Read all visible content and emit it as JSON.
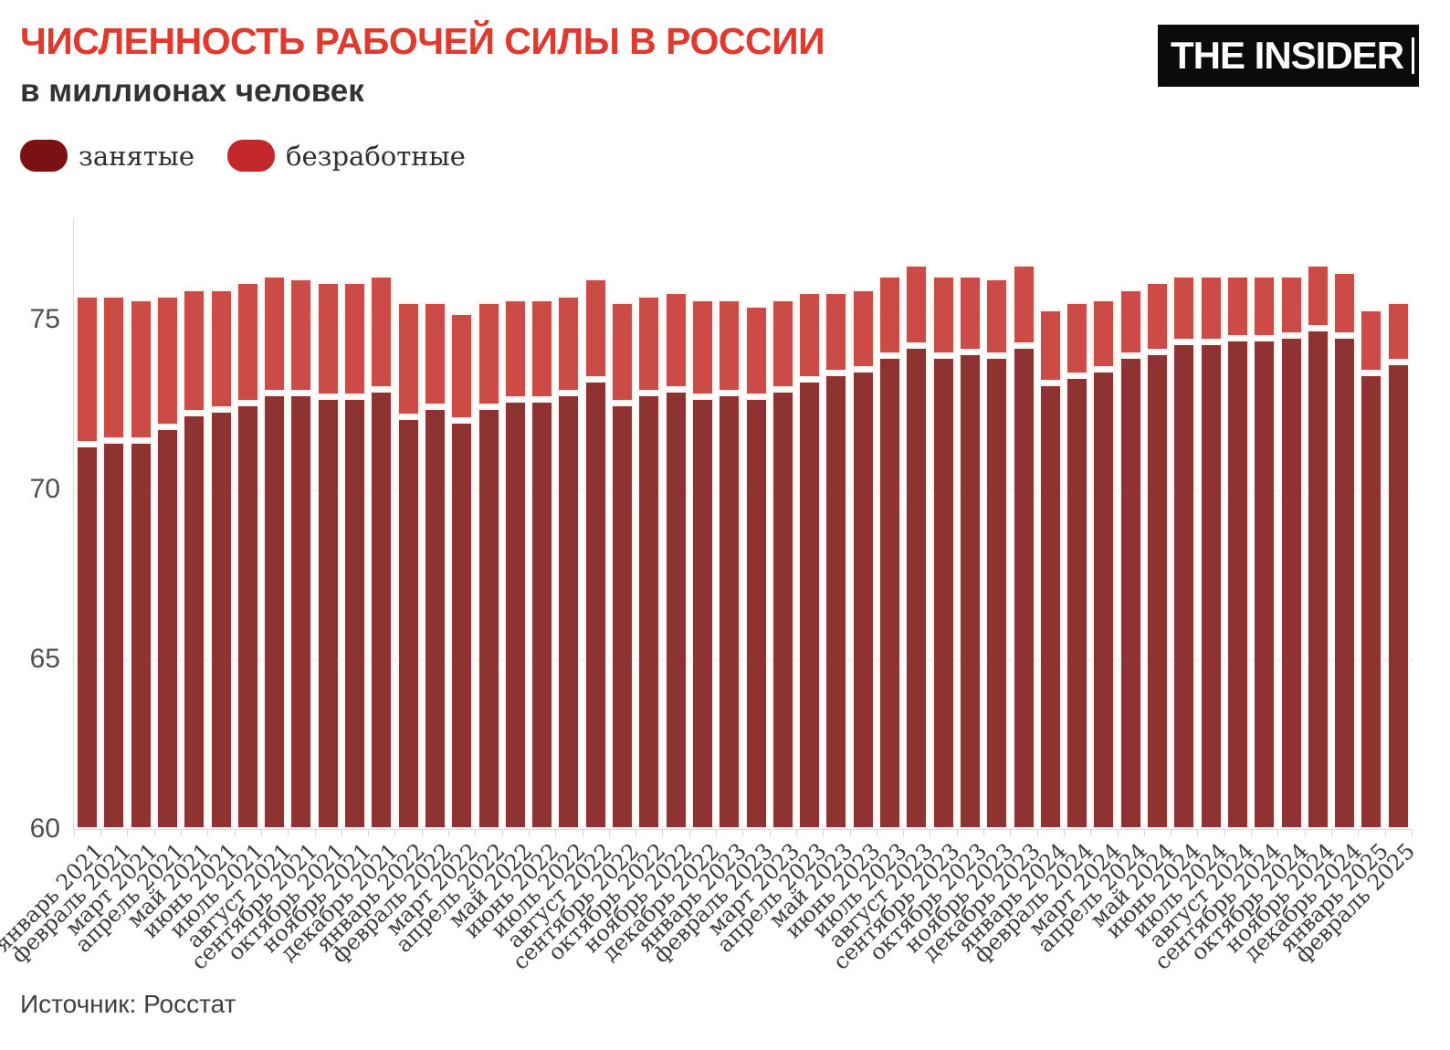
{
  "header": {
    "title": "ЧИСЛЕННОСТЬ РАБОЧЕЙ СИЛЫ В РОССИИ",
    "subtitle": "в миллионах человек",
    "logo_text": "THE INSIDER"
  },
  "legend": {
    "items": [
      {
        "label": "занятые",
        "color": "#7b1113"
      },
      {
        "label": "безработные",
        "color": "#c1272b"
      }
    ]
  },
  "source": "Источник: Росстат",
  "chart_data": {
    "type": "bar",
    "stacked": true,
    "title": "ЧИСЛЕННОСТЬ РАБОЧЕЙ СИЛЫ В РОССИИ",
    "subtitle": "в миллионах человек",
    "xlabel": "",
    "ylabel": "",
    "ylim": [
      60,
      78
    ],
    "yticks": [
      60,
      65,
      70,
      75
    ],
    "grid": true,
    "legend_position": "top-left",
    "categories": [
      "январь 2021",
      "февраль 2021",
      "март 2021",
      "апрель 2021",
      "май 2021",
      "июнь 2021",
      "июль 2021",
      "август 2021",
      "сентябрь 2021",
      "октябрь 2021",
      "ноябрь 2021",
      "декабрь 2021",
      "январь 2022",
      "февраль 2022",
      "март 2022",
      "апрель 2022",
      "май 2022",
      "июнь 2022",
      "июль 2022",
      "август 2022",
      "сентябрь 2022",
      "октябрь 2022",
      "ноябрь 2022",
      "декабрь 2022",
      "январь 2023",
      "февраль 2023",
      "март 2023",
      "апрель 2023",
      "май 2023",
      "июнь 2023",
      "июль 2023",
      "август 2023",
      "сентябрь 2023",
      "октябрь 2023",
      "ноябрь 2023",
      "декабрь 2023",
      "январь 2024",
      "февраль 2024",
      "март 2024",
      "апрель 2024",
      "май 2024",
      "июнь 2024",
      "июль 2024",
      "август 2024",
      "сентябрь 2024",
      "октябрь 2024",
      "ноябрь 2024",
      "декабрь 2024",
      "январь 2025",
      "февраль 2025"
    ],
    "series": [
      {
        "name": "занятые",
        "color": "#8e3332",
        "values": [
          71.3,
          71.4,
          71.4,
          71.8,
          72.2,
          72.3,
          72.5,
          72.8,
          72.8,
          72.7,
          72.7,
          72.9,
          72.1,
          72.4,
          72.0,
          72.4,
          72.6,
          72.6,
          72.8,
          73.2,
          72.5,
          72.8,
          72.9,
          72.7,
          72.8,
          72.7,
          72.9,
          73.2,
          73.4,
          73.5,
          73.9,
          74.2,
          73.9,
          74.0,
          73.9,
          74.2,
          73.1,
          73.3,
          73.5,
          73.9,
          74.0,
          74.3,
          74.3,
          74.4,
          74.4,
          74.5,
          74.7,
          74.5,
          73.4,
          73.7
        ]
      },
      {
        "name": "безработные",
        "color": "#cc4b46",
        "values": [
          4.4,
          4.3,
          4.2,
          3.9,
          3.7,
          3.6,
          3.6,
          3.5,
          3.4,
          3.4,
          3.4,
          3.4,
          3.4,
          3.1,
          3.2,
          3.1,
          3.0,
          3.0,
          2.9,
          3.0,
          3.0,
          2.9,
          2.9,
          2.9,
          2.8,
          2.7,
          2.7,
          2.6,
          2.4,
          2.4,
          2.4,
          2.4,
          2.4,
          2.3,
          2.3,
          2.4,
          2.2,
          2.2,
          2.1,
          2.0,
          2.1,
          2.0,
          2.0,
          1.9,
          1.9,
          1.8,
          1.9,
          1.9,
          1.9,
          1.8
        ]
      }
    ]
  }
}
